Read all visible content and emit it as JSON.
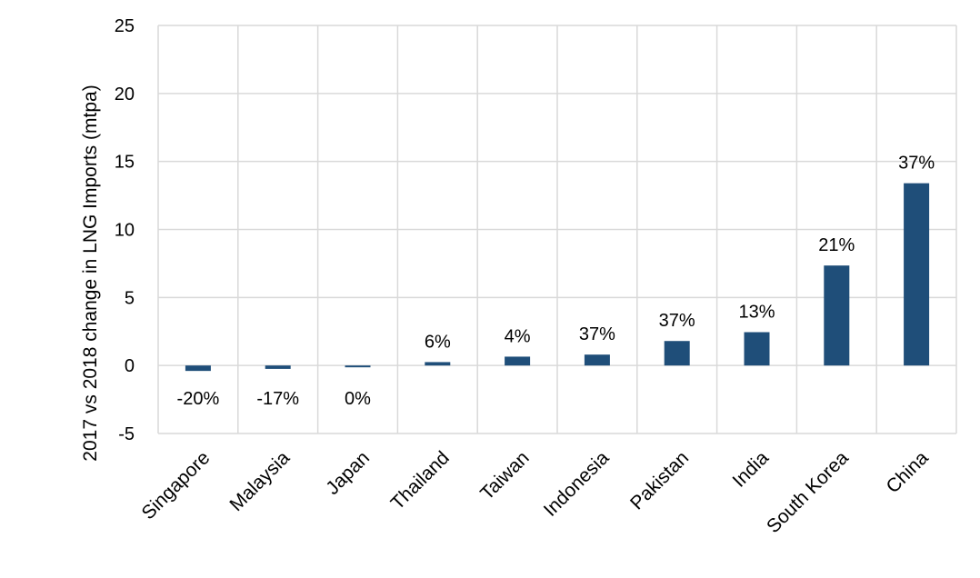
{
  "chart_data": {
    "type": "bar",
    "title": "",
    "xlabel": "",
    "ylabel": "2017 vs 2018 change in LNG Imports (mtpa)",
    "categories": [
      "Singapore",
      "Malaysia",
      "Japan",
      "Thailand",
      "Taiwan",
      "Indonesia",
      "Pakistan",
      "India",
      "South Korea",
      "China"
    ],
    "values": [
      -0.4,
      -0.25,
      -0.1,
      0.25,
      0.65,
      0.8,
      1.8,
      2.45,
      7.35,
      13.4
    ],
    "data_labels": [
      "-20%",
      "-17%",
      "0%",
      "6%",
      "4%",
      "37%",
      "37%",
      "13%",
      "21%",
      "37%"
    ],
    "ylim": [
      -5,
      25
    ],
    "yticks": [
      -5,
      0,
      5,
      10,
      15,
      20,
      25
    ],
    "grid": true,
    "bar_color": "#1f4e79",
    "gridline_color": "#d9d9d9"
  }
}
